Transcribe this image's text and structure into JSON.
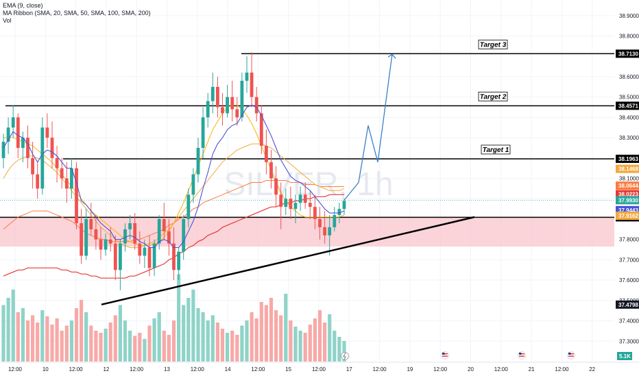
{
  "legend": {
    "line1": "EMA (9, close)",
    "line2": "MA Ribbon (SMA, 20, SMA, 50, SMA, 100, SMA, 200)",
    "line3": "Vol"
  },
  "watermark": "SILVER, 1h",
  "colors": {
    "background": "#ffffff",
    "grid": "#f0f3fa",
    "up": "#26a69a",
    "down": "#ef5350",
    "vol_up": "#8fd3c8",
    "vol_down": "#f7a9a7",
    "ema9": "#4b52d6",
    "sma20": "#ffb000",
    "sma50": "#f2a93b",
    "sma100": "#ff7a3d",
    "sma200": "#e53935",
    "zone": "#f8c6cc",
    "projection": "#3a7fc8",
    "trendline": "#000000"
  },
  "chart_data": {
    "type": "candlestick",
    "symbol": "SILVER",
    "timeframe": "1h",
    "ylim": [
      37.2,
      38.95
    ],
    "y_ticks": [
      "38.9000",
      "38.8000",
      "38.6000",
      "38.5000",
      "38.4000",
      "38.3000",
      "38.2000",
      "38.1000",
      "38.0000",
      "37.9000",
      "37.8000",
      "37.7000",
      "37.6000",
      "37.5000",
      "37.4000",
      "37.3000"
    ],
    "x_ticks": [
      "12:00",
      "10",
      "12:00",
      "12",
      "12:00",
      "13",
      "12:00",
      "14",
      "12:00",
      "15",
      "12:00",
      "17",
      "12:00",
      "19",
      "12:00",
      "20",
      "12:00",
      "21",
      "12:00",
      "22"
    ],
    "horizontal_levels": [
      {
        "label": "Target 3",
        "price": 38.713,
        "price_label": "38.7130"
      },
      {
        "label": "Target 2",
        "price": 38.4571,
        "price_label": "38.4571"
      },
      {
        "label": "Target 1",
        "price": 38.1963,
        "price_label": "38.1963"
      },
      {
        "label": "",
        "price": 37.9087,
        "price_label": "37.9087"
      }
    ],
    "zone": {
      "from": 37.765,
      "to": 37.9087
    },
    "trendline": {
      "from_price": 37.48,
      "to_price": 37.91
    },
    "price_labels": [
      {
        "value": "38.1468",
        "price": 38.1468,
        "color": "#f2a93b"
      },
      {
        "value": "38.0644",
        "price": 38.0644,
        "color": "#ff7a3d"
      },
      {
        "value": "38.0223",
        "price": 38.0223,
        "color": "#e53935"
      },
      {
        "value": "37.9930",
        "price": 37.993,
        "color": "#26a69a"
      },
      {
        "value": "37.9443",
        "price": 37.9443,
        "color": "#4b52d6"
      },
      {
        "value": "37.9162",
        "price": 37.9162,
        "color": "#f2a93b"
      },
      {
        "value": "37.4798",
        "price": 37.4798,
        "color": "#131722"
      }
    ],
    "current_price": 37.993,
    "volume_label": "5.1K",
    "candles": [
      [
        38.2,
        38.32,
        38.15,
        38.28
      ],
      [
        38.28,
        38.4,
        38.22,
        38.35
      ],
      [
        38.35,
        38.46,
        38.3,
        38.4
      ],
      [
        38.4,
        38.42,
        38.2,
        38.25
      ],
      [
        38.25,
        38.33,
        38.18,
        38.3
      ],
      [
        38.3,
        38.36,
        38.15,
        38.2
      ],
      [
        38.2,
        38.28,
        38.05,
        38.12
      ],
      [
        38.12,
        38.18,
        38.0,
        38.05
      ],
      [
        38.05,
        38.4,
        38.02,
        38.35
      ],
      [
        38.35,
        38.42,
        38.25,
        38.3
      ],
      [
        38.3,
        38.38,
        38.15,
        38.2
      ],
      [
        38.2,
        38.26,
        38.08,
        38.15
      ],
      [
        38.15,
        38.2,
        38.05,
        38.1
      ],
      [
        38.1,
        38.18,
        37.98,
        38.05
      ],
      [
        38.05,
        38.2,
        38.0,
        38.15
      ],
      [
        38.15,
        38.18,
        37.85,
        37.88
      ],
      [
        37.88,
        37.95,
        37.68,
        37.72
      ],
      [
        37.72,
        37.95,
        37.7,
        37.9
      ],
      [
        37.9,
        37.98,
        37.82,
        37.85
      ],
      [
        37.85,
        37.92,
        37.75,
        37.8
      ],
      [
        37.8,
        37.86,
        37.7,
        37.75
      ],
      [
        37.75,
        37.83,
        37.72,
        37.8
      ],
      [
        37.8,
        37.86,
        37.74,
        37.78
      ],
      [
        37.78,
        37.82,
        37.6,
        37.65
      ],
      [
        37.65,
        37.8,
        37.55,
        37.78
      ],
      [
        37.78,
        37.88,
        37.74,
        37.85
      ],
      [
        37.85,
        37.92,
        37.8,
        37.88
      ],
      [
        37.88,
        37.93,
        37.75,
        37.78
      ],
      [
        37.78,
        37.84,
        37.68,
        37.72
      ],
      [
        37.72,
        37.8,
        37.66,
        37.76
      ],
      [
        37.76,
        37.82,
        37.62,
        37.66
      ],
      [
        37.66,
        37.8,
        37.62,
        37.78
      ],
      [
        37.78,
        37.92,
        37.75,
        37.9
      ],
      [
        37.9,
        37.98,
        37.8,
        37.84
      ],
      [
        37.84,
        37.9,
        37.72,
        37.78
      ],
      [
        37.78,
        37.86,
        37.6,
        37.65
      ],
      [
        37.65,
        37.76,
        37.6,
        37.74
      ],
      [
        37.74,
        37.92,
        37.7,
        37.9
      ],
      [
        37.9,
        38.05,
        37.86,
        38.02
      ],
      [
        38.02,
        38.15,
        37.98,
        38.12
      ],
      [
        38.12,
        38.3,
        38.08,
        38.25
      ],
      [
        38.25,
        38.45,
        38.2,
        38.4
      ],
      [
        38.4,
        38.52,
        38.35,
        38.48
      ],
      [
        38.48,
        38.62,
        38.42,
        38.55
      ],
      [
        38.55,
        38.6,
        38.4,
        38.45
      ],
      [
        38.45,
        38.52,
        38.36,
        38.42
      ],
      [
        38.42,
        38.56,
        38.4,
        38.5
      ],
      [
        38.5,
        38.58,
        38.38,
        38.44
      ],
      [
        38.44,
        38.5,
        38.36,
        38.4
      ],
      [
        38.4,
        38.62,
        38.38,
        38.58
      ],
      [
        38.58,
        38.7,
        38.52,
        38.62
      ],
      [
        38.62,
        38.72,
        38.45,
        38.5
      ],
      [
        38.5,
        38.55,
        38.38,
        38.42
      ],
      [
        38.42,
        38.46,
        38.22,
        38.26
      ],
      [
        38.26,
        38.34,
        38.12,
        38.18
      ],
      [
        38.18,
        38.24,
        38.05,
        38.1
      ],
      [
        38.1,
        38.16,
        37.96,
        38.02
      ],
      [
        38.02,
        38.08,
        37.85,
        37.96
      ],
      [
        37.96,
        38.05,
        37.92,
        38.0
      ],
      [
        38.0,
        38.06,
        37.9,
        37.95
      ],
      [
        37.95,
        38.02,
        37.88,
        37.98
      ],
      [
        37.98,
        38.06,
        37.94,
        38.02
      ],
      [
        38.02,
        38.08,
        37.95,
        37.98
      ],
      [
        37.98,
        38.04,
        37.9,
        37.96
      ],
      [
        37.96,
        38.02,
        37.85,
        37.9
      ],
      [
        37.9,
        37.96,
        37.8,
        37.86
      ],
      [
        37.86,
        37.94,
        37.78,
        37.82
      ],
      [
        37.82,
        37.92,
        37.72,
        37.86
      ],
      [
        37.86,
        37.96,
        37.84,
        37.92
      ],
      [
        37.92,
        37.98,
        37.88,
        37.95
      ],
      [
        37.95,
        38.0,
        37.92,
        37.99
      ]
    ],
    "volumes": [
      0.55,
      0.62,
      0.7,
      0.48,
      0.52,
      0.4,
      0.45,
      0.38,
      0.5,
      0.44,
      0.36,
      0.42,
      0.3,
      0.35,
      0.4,
      0.52,
      0.6,
      0.48,
      0.35,
      0.3,
      0.28,
      0.32,
      0.38,
      0.45,
      0.55,
      0.4,
      0.3,
      0.25,
      0.28,
      0.22,
      0.35,
      0.42,
      0.48,
      0.3,
      0.26,
      0.4,
      0.85,
      0.55,
      0.62,
      0.7,
      0.52,
      0.48,
      0.4,
      0.45,
      0.38,
      0.32,
      0.28,
      0.3,
      0.26,
      0.35,
      0.4,
      0.48,
      0.42,
      0.58,
      0.55,
      0.62,
      0.5,
      0.45,
      0.66,
      0.4,
      0.34,
      0.3,
      0.28,
      0.36,
      0.42,
      0.5,
      0.38,
      0.46,
      0.3,
      0.24,
      0.2
    ],
    "ema9": [
      38.25,
      38.29,
      38.33,
      38.31,
      38.3,
      38.27,
      38.22,
      38.18,
      38.22,
      38.24,
      38.23,
      38.21,
      38.18,
      38.15,
      38.15,
      38.08,
      37.99,
      37.97,
      37.94,
      37.91,
      37.88,
      37.86,
      37.84,
      37.8,
      37.8,
      37.81,
      37.82,
      37.81,
      37.79,
      37.78,
      37.76,
      37.76,
      37.79,
      37.8,
      37.79,
      37.76,
      37.76,
      37.79,
      37.84,
      37.89,
      37.96,
      38.05,
      38.13,
      38.22,
      38.27,
      38.3,
      38.34,
      38.36,
      38.37,
      38.41,
      38.45,
      38.46,
      38.45,
      38.41,
      38.36,
      38.31,
      38.25,
      38.19,
      38.15,
      38.11,
      38.09,
      38.08,
      38.06,
      38.04,
      38.01,
      37.98,
      37.95,
      37.93,
      37.93,
      37.93,
      37.94
    ],
    "sma20": [
      38.3,
      38.3,
      38.3,
      38.29,
      38.28,
      38.27,
      38.26,
      38.24,
      38.22,
      38.2,
      38.18,
      38.15,
      38.12,
      38.09,
      38.06,
      38.03,
      38.0,
      37.97,
      37.94,
      37.92,
      37.9,
      37.88,
      37.86,
      37.84,
      37.82,
      37.8,
      37.79,
      37.78,
      37.77,
      37.77,
      37.77,
      37.78,
      37.79,
      37.81,
      37.84,
      37.88,
      37.93,
      37.98,
      38.04,
      38.1,
      38.16,
      38.22,
      38.28,
      38.34,
      38.38,
      38.42,
      38.45,
      38.46,
      38.46,
      38.44,
      38.41,
      38.37,
      38.32,
      38.26,
      38.2,
      38.14,
      38.08,
      38.03,
      37.99,
      37.96,
      37.94,
      37.92,
      37.91,
      37.91,
      37.91,
      37.91,
      37.91,
      37.91,
      37.91,
      37.91,
      37.92
    ],
    "sma50": [
      38.1,
      38.14,
      38.17,
      38.19,
      38.2,
      38.21,
      38.21,
      38.2,
      38.19,
      38.17,
      38.15,
      38.13,
      38.1,
      38.07,
      38.04,
      38.01,
      37.98,
      37.95,
      37.92,
      37.89,
      37.86,
      37.84,
      37.82,
      37.8,
      37.78,
      37.77,
      37.76,
      37.76,
      37.76,
      37.77,
      37.78,
      37.79,
      37.81,
      37.83,
      37.85,
      37.88,
      37.91,
      37.94,
      37.97,
      38.0,
      38.03,
      38.06,
      38.09,
      38.12,
      38.15,
      38.18,
      38.2,
      38.22,
      38.24,
      38.25,
      38.26,
      38.27,
      38.27,
      38.27,
      38.26,
      38.25,
      38.23,
      38.21,
      38.19,
      38.17,
      38.15,
      38.13,
      38.11,
      38.09,
      38.07,
      38.06,
      38.05,
      38.04,
      38.04,
      38.04,
      38.05
    ],
    "sma100": [
      37.85,
      37.87,
      37.89,
      37.91,
      37.92,
      37.93,
      37.94,
      37.94,
      37.94,
      37.94,
      37.93,
      37.92,
      37.91,
      37.9,
      37.89,
      37.87,
      37.85,
      37.83,
      37.82,
      37.81,
      37.8,
      37.8,
      37.79,
      37.79,
      37.79,
      37.79,
      37.79,
      37.8,
      37.8,
      37.81,
      37.82,
      37.83,
      37.84,
      37.85,
      37.87,
      37.88,
      37.9,
      37.91,
      37.93,
      37.95,
      37.96,
      37.98,
      37.99,
      38.0,
      38.01,
      38.02,
      38.03,
      38.04,
      38.05,
      38.06,
      38.07,
      38.08,
      38.08,
      38.08,
      38.09,
      38.09,
      38.09,
      38.09,
      38.09,
      38.08,
      38.08,
      38.08,
      38.07,
      38.07,
      38.07,
      38.06,
      38.06,
      38.06,
      38.06,
      38.06,
      38.06
    ],
    "sma200": [
      37.62,
      37.63,
      37.64,
      37.65,
      37.65,
      37.66,
      37.66,
      37.66,
      37.66,
      37.66,
      37.66,
      37.66,
      37.65,
      37.65,
      37.64,
      37.64,
      37.63,
      37.63,
      37.62,
      37.62,
      37.61,
      37.61,
      37.61,
      37.61,
      37.61,
      37.61,
      37.62,
      37.62,
      37.63,
      37.64,
      37.65,
      37.66,
      37.67,
      37.68,
      37.7,
      37.71,
      37.73,
      37.74,
      37.76,
      37.77,
      37.79,
      37.8,
      37.82,
      37.83,
      37.84,
      37.86,
      37.87,
      37.88,
      37.89,
      37.9,
      37.91,
      37.92,
      37.93,
      37.94,
      37.95,
      37.96,
      37.96,
      37.97,
      37.98,
      37.98,
      37.99,
      37.99,
      38.0,
      38.0,
      38.01,
      38.01,
      38.01,
      38.02,
      38.02,
      38.02,
      38.02
    ],
    "projection": [
      {
        "x": 3,
        "price": 38.08
      },
      {
        "x": 5,
        "price": 38.36
      },
      {
        "x": 7,
        "price": 38.18
      },
      {
        "x": 10,
        "price": 38.71
      }
    ]
  }
}
